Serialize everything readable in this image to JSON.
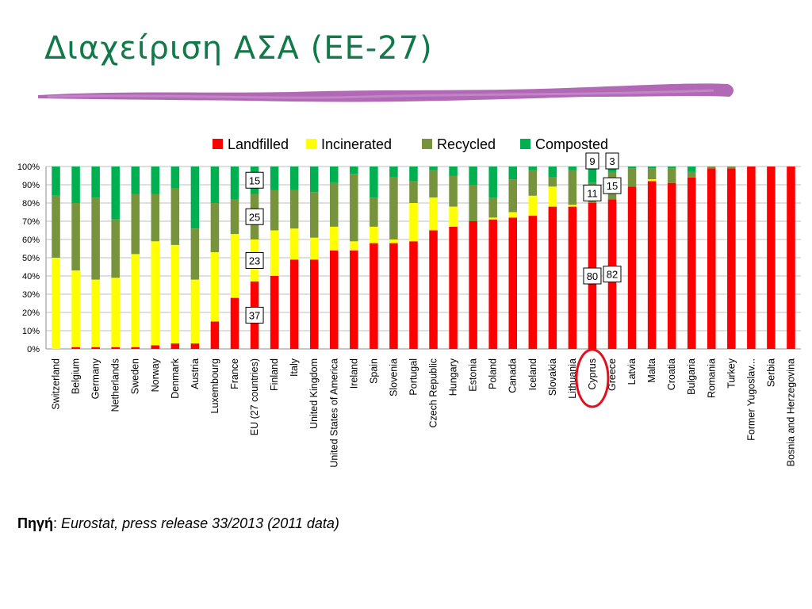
{
  "slide": {
    "title": "Διαχείριση ΑΣΑ (ΕΕ-27)",
    "source_label": "Πηγή",
    "source_sep": ":",
    "source_text": "Eurostat, press release 33/2013 (2011 data)"
  },
  "chart_data": {
    "type": "bar",
    "stacked": true,
    "percent": true,
    "title": "",
    "xlabel": "",
    "ylabel": "",
    "ylim": [
      0,
      100
    ],
    "yticks": [
      "0%",
      "10%",
      "20%",
      "30%",
      "40%",
      "50%",
      "60%",
      "70%",
      "80%",
      "90%",
      "100%"
    ],
    "grid": true,
    "legend": "top",
    "categories": [
      "Switzerland",
      "Belgium",
      "Germany",
      "Netherlands",
      "Sweden",
      "Norway",
      "Denmark",
      "Austria",
      "Luxembourg",
      "France",
      "EU (27 countries)",
      "Finland",
      "Italy",
      "United Kingdom",
      "United States of America",
      "Ireland",
      "Spain",
      "Slovenia",
      "Portugal",
      "Czech Republic",
      "Hungary",
      "Estonia",
      "Poland",
      "Canada",
      "Iceland",
      "Slovakia",
      "Lithuania",
      "Cyprus",
      "Greece",
      "Latvia",
      "Malta",
      "Croatia",
      "Bulgaria",
      "Romania",
      "Turkey",
      "Former Yugoslav...",
      "Serbia",
      "Bosnia and Herzegovina"
    ],
    "series": [
      {
        "name": "Landfilled",
        "color": "#ff0000",
        "values": [
          0,
          1,
          1,
          1,
          1,
          2,
          3,
          3,
          15,
          28,
          37,
          40,
          49,
          49,
          54,
          54,
          58,
          58,
          59,
          65,
          67,
          70,
          71,
          72,
          73,
          78,
          78,
          80,
          82,
          89,
          92,
          91,
          94,
          99,
          99,
          100,
          100,
          100
        ]
      },
      {
        "name": "Incinerated",
        "color": "#ffff00",
        "values": [
          50,
          42,
          37,
          38,
          51,
          57,
          54,
          35,
          38,
          35,
          23,
          25,
          17,
          12,
          13,
          5,
          9,
          2,
          21,
          18,
          11,
          0,
          1,
          3,
          11,
          11,
          1,
          0,
          0,
          0,
          1,
          0,
          0,
          0,
          0,
          0,
          0,
          0
        ]
      },
      {
        "name": "Recycled",
        "color": "#77933c",
        "values": [
          34,
          37,
          45,
          32,
          33,
          26,
          31,
          28,
          27,
          19,
          25,
          22,
          21,
          25,
          24,
          37,
          16,
          34,
          12,
          15,
          17,
          20,
          11,
          18,
          14,
          5,
          19,
          11,
          15,
          10,
          6,
          8,
          3,
          1,
          1,
          0,
          0,
          0
        ]
      },
      {
        "name": "Composted",
        "color": "#00b050",
        "values": [
          16,
          20,
          17,
          29,
          15,
          15,
          12,
          34,
          20,
          18,
          15,
          13,
          13,
          14,
          9,
          4,
          17,
          6,
          8,
          2,
          5,
          10,
          17,
          7,
          2,
          6,
          2,
          9,
          3,
          1,
          1,
          1,
          3,
          0,
          0,
          0,
          0,
          0
        ]
      }
    ],
    "annotations": [
      {
        "category": "EU (27 countries)",
        "series": "Landfilled",
        "label": "37"
      },
      {
        "category": "EU (27 countries)",
        "series": "Incinerated",
        "label": "23"
      },
      {
        "category": "EU (27 countries)",
        "series": "Recycled",
        "label": "25"
      },
      {
        "category": "EU (27 countries)",
        "series": "Composted",
        "label": "15"
      },
      {
        "category": "Cyprus",
        "series": "Landfilled",
        "label": "80"
      },
      {
        "category": "Cyprus",
        "series": "Recycled",
        "label": "11"
      },
      {
        "category": "Cyprus",
        "series": "Composted",
        "label": "9"
      },
      {
        "category": "Greece",
        "series": "Landfilled",
        "label": "82"
      },
      {
        "category": "Greece",
        "series": "Recycled",
        "label": "15"
      },
      {
        "category": "Greece",
        "series": "Composted",
        "label": "3"
      }
    ],
    "highlight": {
      "category": "Cyprus",
      "color": "#e0101e"
    }
  }
}
